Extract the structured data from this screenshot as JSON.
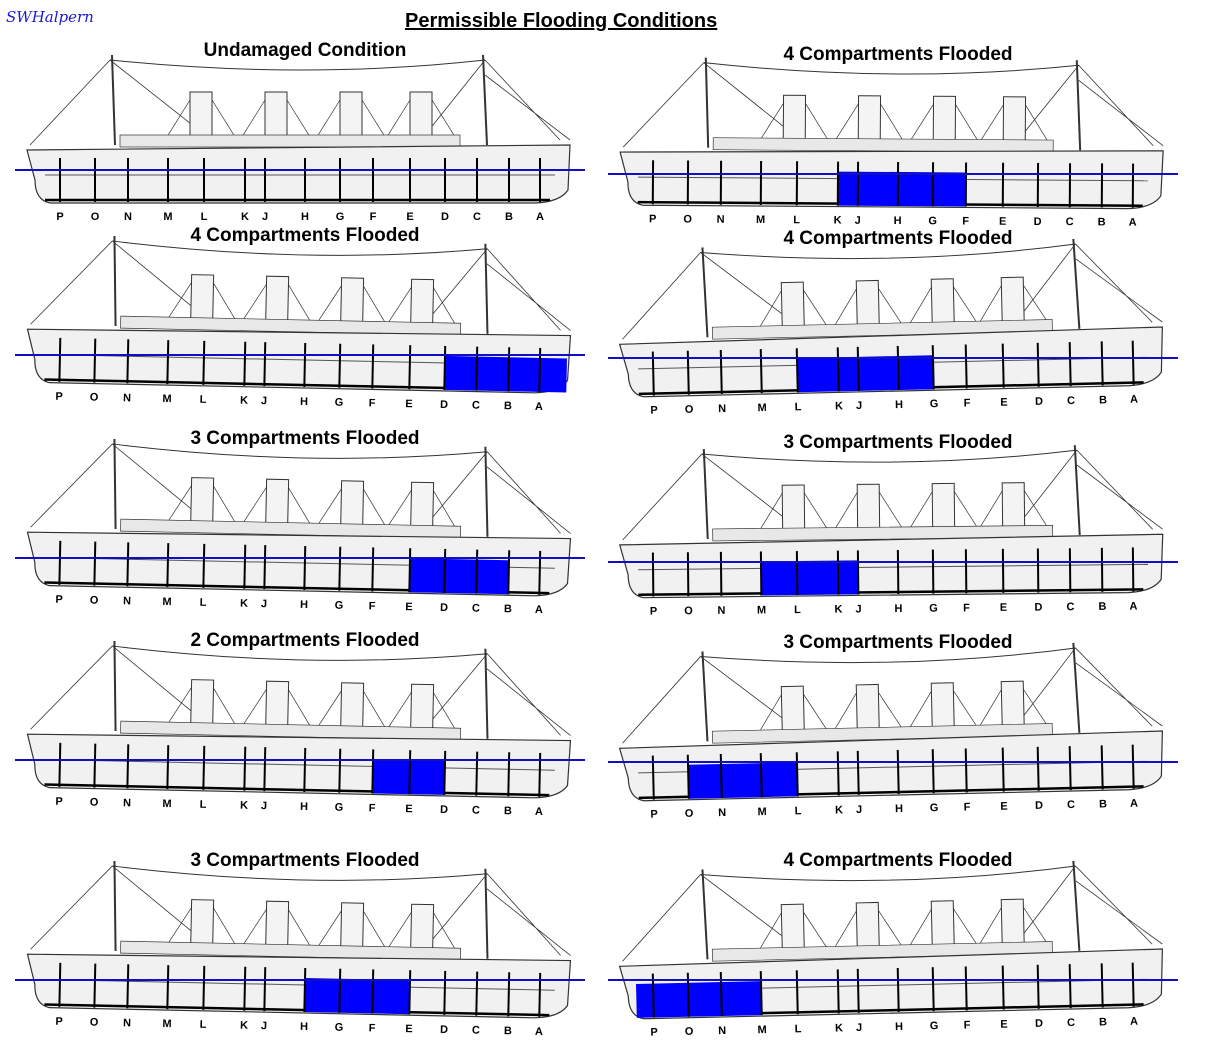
{
  "signature": "SWHalpern",
  "title": "Permissible Flooding Conditions",
  "bulkhead_letters": [
    "P",
    "O",
    "N",
    "M",
    "L",
    "K",
    "J",
    "H",
    "G",
    "F",
    "E",
    "D",
    "C",
    "B",
    "A"
  ],
  "colors": {
    "flood": "#0000ff",
    "waterline": "#1010c0",
    "drawing": "#333333"
  },
  "panels": [
    {
      "label": "Undamaged Condition",
      "flooded_from": null,
      "flooded_to": null,
      "trim": "level"
    },
    {
      "label": "4 Compartments Flooded",
      "flooded_from": "K",
      "flooded_to": "F",
      "trim": "slight by bow"
    },
    {
      "label": "4 Compartments Flooded",
      "flooded_from": "D",
      "flooded_to": "bow",
      "trim": "by bow"
    },
    {
      "label": "4 Compartments Flooded",
      "flooded_from": "L",
      "flooded_to": "G",
      "trim": "by stern"
    },
    {
      "label": "3 Compartments Flooded",
      "flooded_from": "E",
      "flooded_to": "B",
      "trim": "by bow"
    },
    {
      "label": "3 Compartments Flooded",
      "flooded_from": "M",
      "flooded_to": "J",
      "trim": "slight by stern"
    },
    {
      "label": "2 Compartments Flooded",
      "flooded_from": "F",
      "flooded_to": "D",
      "trim": "by bow"
    },
    {
      "label": "3 Compartments Flooded",
      "flooded_from": "O",
      "flooded_to": "L",
      "trim": "by stern"
    },
    {
      "label": "3 Compartments Flooded",
      "flooded_from": "H",
      "flooded_to": "E",
      "trim": "by bow"
    },
    {
      "label": "4 Compartments Flooded",
      "flooded_from": "stern",
      "flooded_to": "M",
      "trim": "by stern"
    }
  ]
}
